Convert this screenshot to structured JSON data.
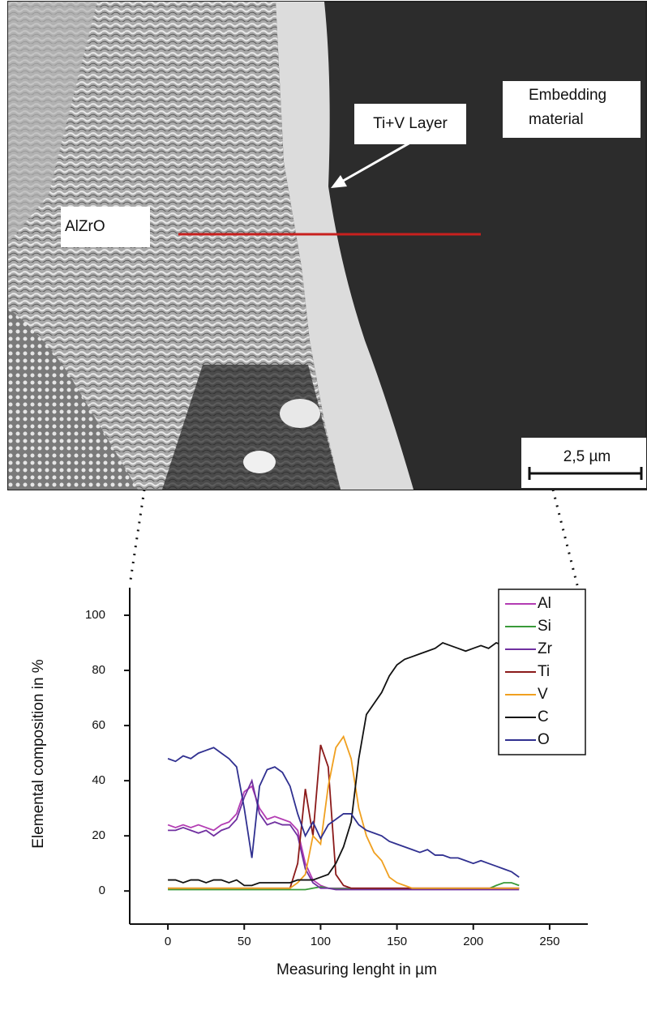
{
  "image_labels": {
    "embedding": [
      "Embedding",
      "material"
    ],
    "layer": "Ti+V Layer",
    "phase": "AlZrO",
    "scale_bar": "2,5 µm"
  },
  "chart_data": {
    "type": "line",
    "x_label": "Measuring lenght in  µm",
    "y_label": "Elemental composition in %",
    "x": [
      0,
      5,
      10,
      15,
      20,
      25,
      30,
      35,
      40,
      45,
      50,
      55,
      60,
      65,
      70,
      75,
      80,
      85,
      90,
      95,
      100,
      105,
      110,
      115,
      120,
      125,
      130,
      135,
      140,
      145,
      150,
      155,
      160,
      165,
      170,
      175,
      180,
      185,
      190,
      195,
      200,
      205,
      210,
      215,
      220,
      225,
      230
    ],
    "xlim": [
      -25,
      275
    ],
    "xticks": [
      0,
      50,
      100,
      150,
      200,
      250
    ],
    "ylim": [
      -12,
      110
    ],
    "yticks": [
      0,
      20,
      40,
      60,
      80,
      100
    ],
    "legend": "top-right",
    "series": [
      {
        "name": "Al",
        "color": "#b33cb3",
        "values": [
          24,
          23,
          24,
          23,
          24,
          23,
          22,
          24,
          25,
          28,
          36,
          38,
          30,
          26,
          27,
          26,
          25,
          22,
          10,
          4,
          2,
          1,
          1,
          1,
          1,
          1,
          1,
          1,
          1,
          1,
          1,
          1,
          1,
          1,
          1,
          1,
          1,
          1,
          1,
          1,
          1,
          1,
          1,
          1,
          1,
          1,
          1
        ]
      },
      {
        "name": "Si",
        "color": "#3a9a3a",
        "values": [
          0.5,
          0.5,
          0.5,
          0.5,
          0.5,
          0.5,
          0.5,
          0.5,
          0.5,
          0.5,
          0.5,
          0.5,
          0.5,
          0.5,
          0.5,
          0.5,
          0.5,
          0.5,
          0.5,
          1,
          1.5,
          1,
          0.8,
          0.8,
          0.8,
          0.8,
          0.8,
          0.8,
          0.8,
          0.8,
          0.8,
          0.8,
          0.8,
          0.8,
          0.8,
          0.8,
          0.8,
          0.8,
          0.8,
          0.8,
          0.8,
          0.8,
          0.8,
          2,
          3,
          3,
          2
        ]
      },
      {
        "name": "Zr",
        "color": "#7030a0",
        "values": [
          22,
          22,
          23,
          22,
          21,
          22,
          20,
          22,
          23,
          26,
          34,
          40,
          28,
          24,
          25,
          24,
          24,
          20,
          8,
          3,
          1,
          1,
          0.5,
          0.5,
          0.5,
          0.5,
          0.5,
          0.5,
          0.5,
          0.5,
          0.5,
          0.5,
          0.5,
          0.5,
          0.5,
          0.5,
          0.5,
          0.5,
          0.5,
          0.5,
          0.5,
          0.5,
          0.5,
          0.5,
          0.5,
          0.5,
          0.5
        ]
      },
      {
        "name": "Ti",
        "color": "#8b1a1a",
        "values": [
          1,
          1,
          1,
          1,
          1,
          1,
          1,
          1,
          1,
          1,
          1,
          1,
          1,
          1,
          1,
          1,
          1,
          10,
          37,
          20,
          53,
          45,
          6,
          2,
          1,
          1,
          1,
          1,
          1,
          1,
          1,
          1,
          1,
          1,
          1,
          1,
          1,
          1,
          1,
          1,
          1,
          1,
          1,
          1,
          1,
          1,
          1
        ]
      },
      {
        "name": "V",
        "color": "#f0a020",
        "values": [
          1,
          1,
          1,
          1,
          1,
          1,
          1,
          1,
          1,
          1,
          1,
          1,
          1,
          1,
          1,
          1,
          1,
          3,
          6,
          20,
          17,
          38,
          52,
          56,
          48,
          30,
          20,
          14,
          11,
          5,
          3,
          2,
          1,
          1,
          1,
          1,
          1,
          1,
          1,
          1,
          1,
          1,
          1,
          1,
          1,
          1,
          1
        ]
      },
      {
        "name": "C",
        "color": "#111111",
        "values": [
          4,
          4,
          3,
          4,
          4,
          3,
          4,
          4,
          3,
          4,
          2,
          2,
          3,
          3,
          3,
          3,
          3,
          4,
          4,
          4,
          5,
          6,
          10,
          16,
          25,
          48,
          64,
          68,
          72,
          78,
          82,
          84,
          85,
          86,
          87,
          88,
          90,
          89,
          88,
          87,
          88,
          89,
          88,
          90,
          89,
          90,
          90
        ]
      },
      {
        "name": "O",
        "color": "#303090",
        "values": [
          48,
          47,
          49,
          48,
          50,
          51,
          52,
          50,
          48,
          45,
          30,
          12,
          38,
          44,
          45,
          43,
          38,
          28,
          20,
          25,
          19,
          24,
          26,
          28,
          28,
          24,
          22,
          21,
          20,
          18,
          17,
          16,
          15,
          14,
          15,
          13,
          13,
          12,
          12,
          11,
          10,
          11,
          10,
          9,
          8,
          7,
          5
        ]
      }
    ]
  }
}
